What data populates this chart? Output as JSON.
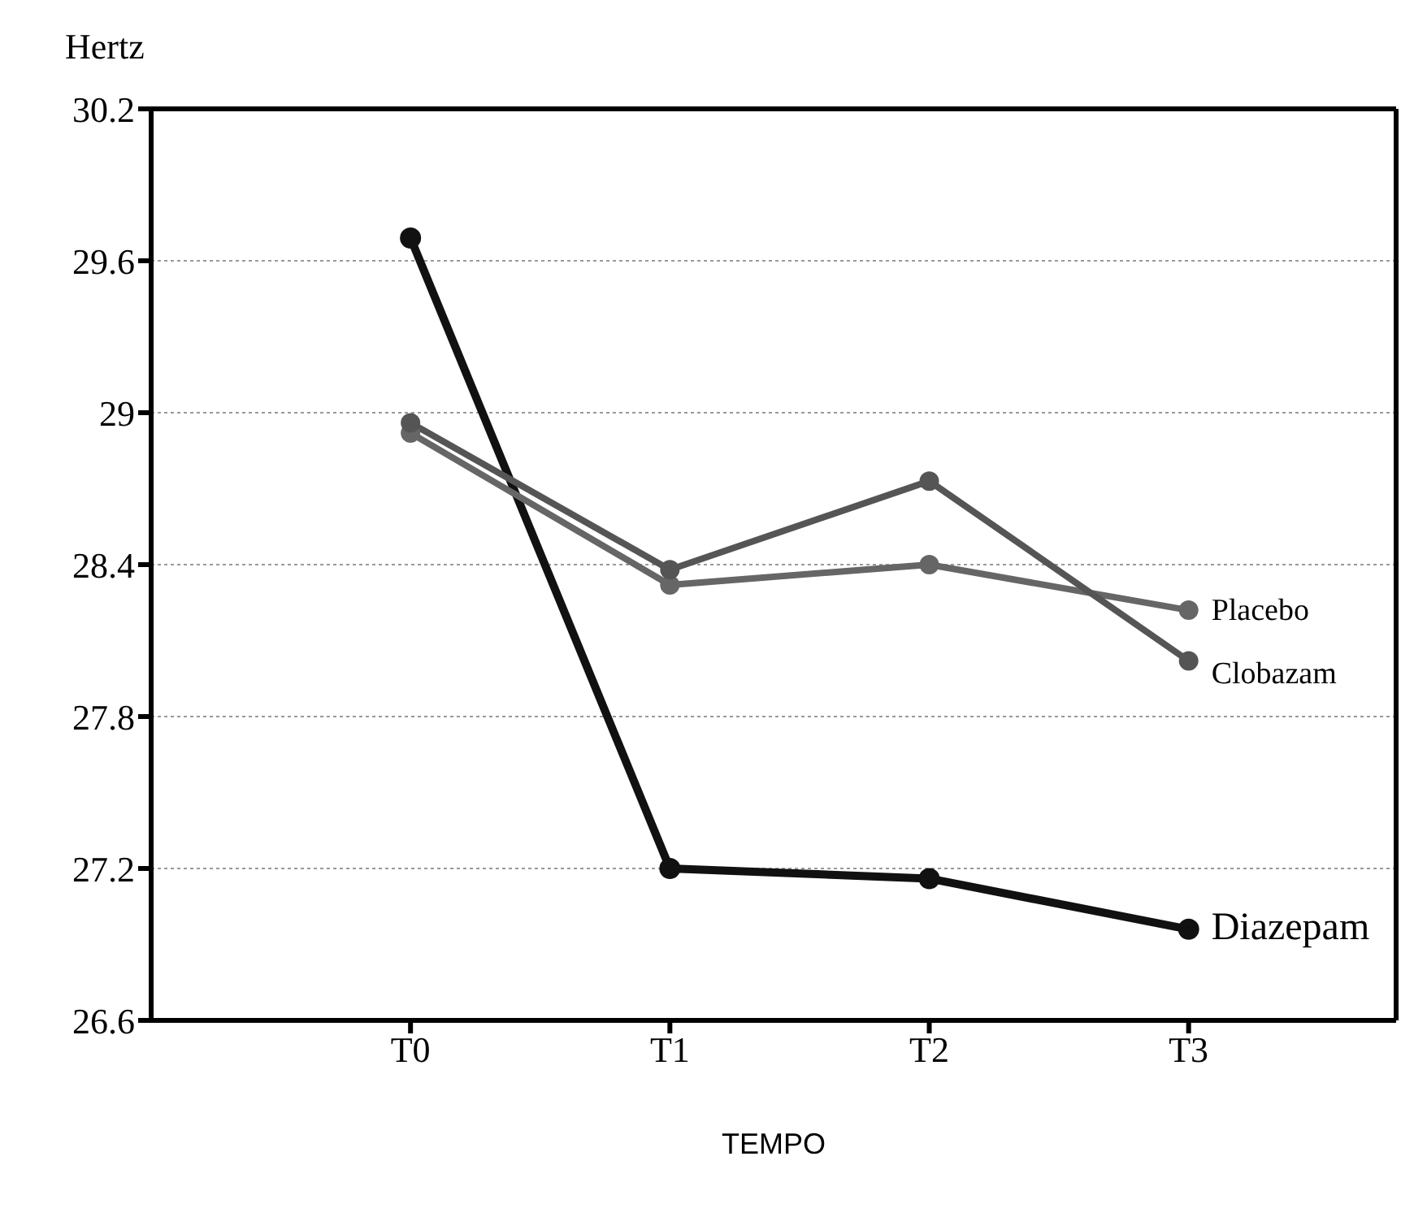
{
  "chart_data": {
    "type": "line",
    "xlabel": "TEMPO",
    "ylabel": "Hertz",
    "categories": [
      "T0",
      "T1",
      "T2",
      "T3"
    ],
    "series": [
      {
        "name": "Diazepam",
        "color": "#111111",
        "values": [
          29.69,
          27.2,
          27.16,
          26.96
        ]
      },
      {
        "name": "Placebo",
        "color": "#666666",
        "values": [
          28.92,
          28.32,
          28.4,
          28.22
        ]
      },
      {
        "name": "Clobazam",
        "color": "#555555",
        "values": [
          28.96,
          28.38,
          28.73,
          28.02
        ]
      }
    ],
    "ylim": [
      26.6,
      30.2
    ],
    "yticks": [
      26.6,
      27.2,
      27.8,
      28.4,
      29,
      29.6,
      30.2
    ],
    "grid": "y",
    "marker": "circle",
    "line_style": "solid"
  }
}
